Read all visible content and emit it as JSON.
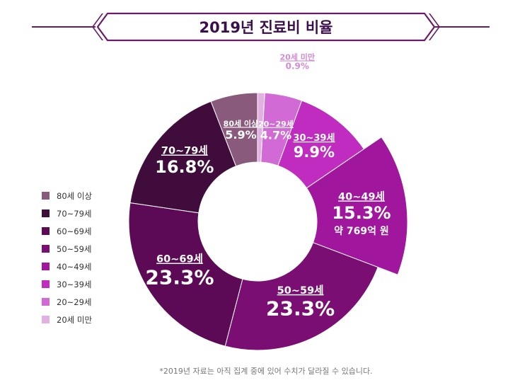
{
  "chart_data": {
    "type": "pie",
    "title": "2019년 진료비 비율",
    "donut": true,
    "categories": [
      "80세 이상",
      "70~79세",
      "60~69세",
      "50~59세",
      "40~49세",
      "30~39세",
      "20~29세",
      "20세 미만"
    ],
    "values": [
      5.9,
      16.8,
      23.3,
      23.3,
      15.3,
      9.9,
      4.7,
      0.9
    ],
    "value_labels": [
      "5.9%",
      "16.8%",
      "23.3%",
      "23.3%",
      "15.3%",
      "9.9%",
      "4.7%",
      "0.9%"
    ],
    "colors": [
      "#8a5a7d",
      "#3f0c3c",
      "#5c0a55",
      "#7a0e72",
      "#a0169c",
      "#c02cc0",
      "#d26ad6",
      "#e3b0e3"
    ],
    "highlight": {
      "category": "40~49세",
      "note": "약 769억 원"
    },
    "legend": {
      "position": "left"
    },
    "footnote": "*2019년 자료는 아직 집계 중에 있어 수치가 달라질 수 있습니다."
  }
}
